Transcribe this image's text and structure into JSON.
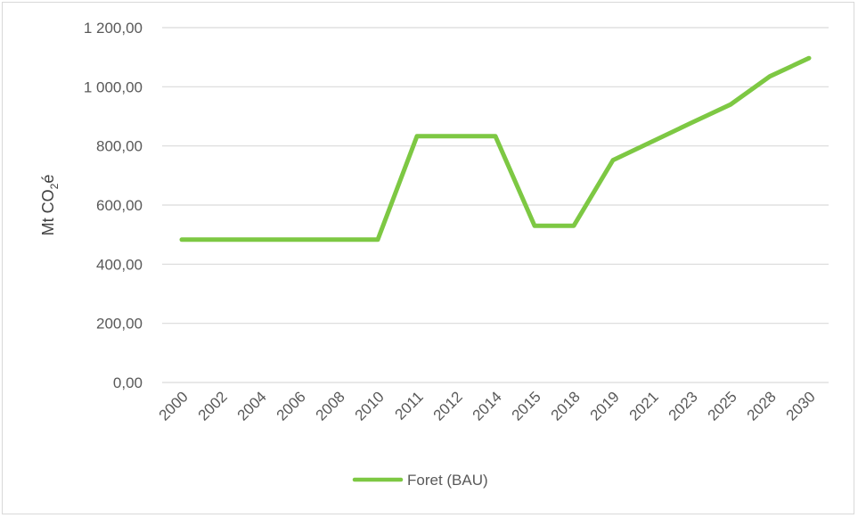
{
  "chart_data": {
    "type": "line",
    "title": "",
    "xlabel": "",
    "ylabel": "Mt CO₂é",
    "ylabel_parts": {
      "main": "Mt CO",
      "sub": "2",
      "tail": "é"
    },
    "categories": [
      "2000",
      "2002",
      "2004",
      "2006",
      "2008",
      "2010",
      "2011",
      "2012",
      "2014",
      "2015",
      "2018",
      "2019",
      "2021",
      "2023",
      "2025",
      "2028",
      "2030"
    ],
    "yticks": [
      "0,00",
      "200,00",
      "400,00",
      "600,00",
      "800,00",
      "1 000,00",
      "1 200,00"
    ],
    "ylim": [
      0,
      1200
    ],
    "grid": true,
    "legend_position": "bottom",
    "series": [
      {
        "name": "Foret (BAU)",
        "color": "#7dc843",
        "values": [
          483,
          483,
          483,
          483,
          483,
          483,
          833,
          833,
          833,
          530,
          530,
          752,
          815,
          878,
          940,
          1035,
          1097
        ]
      }
    ]
  }
}
